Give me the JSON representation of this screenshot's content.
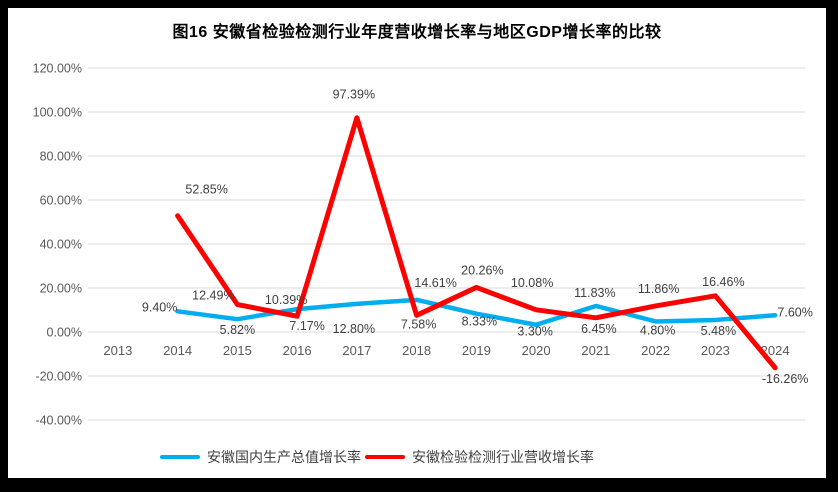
{
  "chart_title": "图16 安徽省检验检测行业年度营收增长率与地区GDP增长率的比较",
  "colors": {
    "gdp_line": "#00AEEF",
    "revenue_line": "#FF0000",
    "gridline": "#D9D9D9",
    "axis_text": "#595959",
    "data_label_text": "#404040",
    "chart_background": "#FFFFFF",
    "page_frame": "#000000"
  },
  "legend": {
    "items": [
      {
        "id": "gdp",
        "label": "安徽国内生产总值增长率",
        "color": "#00AEEF"
      },
      {
        "id": "revenue",
        "label": "安徽检验检测行业营收增长率",
        "color": "#FF0000"
      }
    ]
  },
  "chart_data": {
    "type": "line",
    "title": "图16 安徽省检验检测行业年度营收增长率与地区GDP增长率的比较",
    "categories": [
      "2013",
      "2014",
      "2015",
      "2016",
      "2017",
      "2018",
      "2019",
      "2020",
      "2021",
      "2022",
      "2023",
      "2024"
    ],
    "ylim": [
      -40,
      120
    ],
    "ytick_step": 20,
    "grid": true,
    "legend_position": "bottom",
    "yticks": [
      {
        "value": 120,
        "label": "120.00%"
      },
      {
        "value": 100,
        "label": "100.00%"
      },
      {
        "value": 80,
        "label": "80.00%"
      },
      {
        "value": 60,
        "label": "60.00%"
      },
      {
        "value": 40,
        "label": "40.00%"
      },
      {
        "value": 20,
        "label": "20.00%"
      },
      {
        "value": 0,
        "label": "0.00%"
      },
      {
        "value": -20,
        "label": "-20.00%"
      },
      {
        "value": -40,
        "label": "-40.00%"
      }
    ],
    "series": [
      {
        "name": "安徽国内生产总值增长率",
        "color": "#00AEEF",
        "points": [
          {
            "year": "2014",
            "value": 9.4,
            "label": "9.40%"
          },
          {
            "year": "2015",
            "value": 5.82,
            "label": "5.82%"
          },
          {
            "year": "2016",
            "value": 10.39,
            "label": "10.39%"
          },
          {
            "year": "2017",
            "value": 12.8,
            "label": "12.80%"
          },
          {
            "year": "2018",
            "value": 14.61,
            "label": "14.61%"
          },
          {
            "year": "2019",
            "value": 8.33,
            "label": "8.33%"
          },
          {
            "year": "2020",
            "value": 3.3,
            "label": "3.30%"
          },
          {
            "year": "2021",
            "value": 11.83,
            "label": "11.83%"
          },
          {
            "year": "2022",
            "value": 4.8,
            "label": "4.80%"
          },
          {
            "year": "2023",
            "value": 5.48,
            "label": "5.48%"
          },
          {
            "year": "2024",
            "value": 7.6,
            "label": "7.60%"
          }
        ]
      },
      {
        "name": "安徽检验检测行业营收增长率",
        "color": "#FF0000",
        "points": [
          {
            "year": "2014",
            "value": 52.85,
            "label": "52.85%"
          },
          {
            "year": "2015",
            "value": 12.49,
            "label": "12.49%"
          },
          {
            "year": "2016",
            "value": 7.17,
            "label": "7.17%"
          },
          {
            "year": "2017",
            "value": 97.39,
            "label": "97.39%"
          },
          {
            "year": "2018",
            "value": 7.58,
            "label": "7.58%"
          },
          {
            "year": "2019",
            "value": 20.26,
            "label": "20.26%"
          },
          {
            "year": "2020",
            "value": 10.08,
            "label": "10.08%"
          },
          {
            "year": "2021",
            "value": 6.45,
            "label": "6.45%"
          },
          {
            "year": "2022",
            "value": 11.86,
            "label": "11.86%"
          },
          {
            "year": "2023",
            "value": 16.46,
            "label": "16.46%"
          },
          {
            "year": "2024",
            "value": -16.26,
            "label": "-16.26%"
          }
        ]
      }
    ]
  }
}
